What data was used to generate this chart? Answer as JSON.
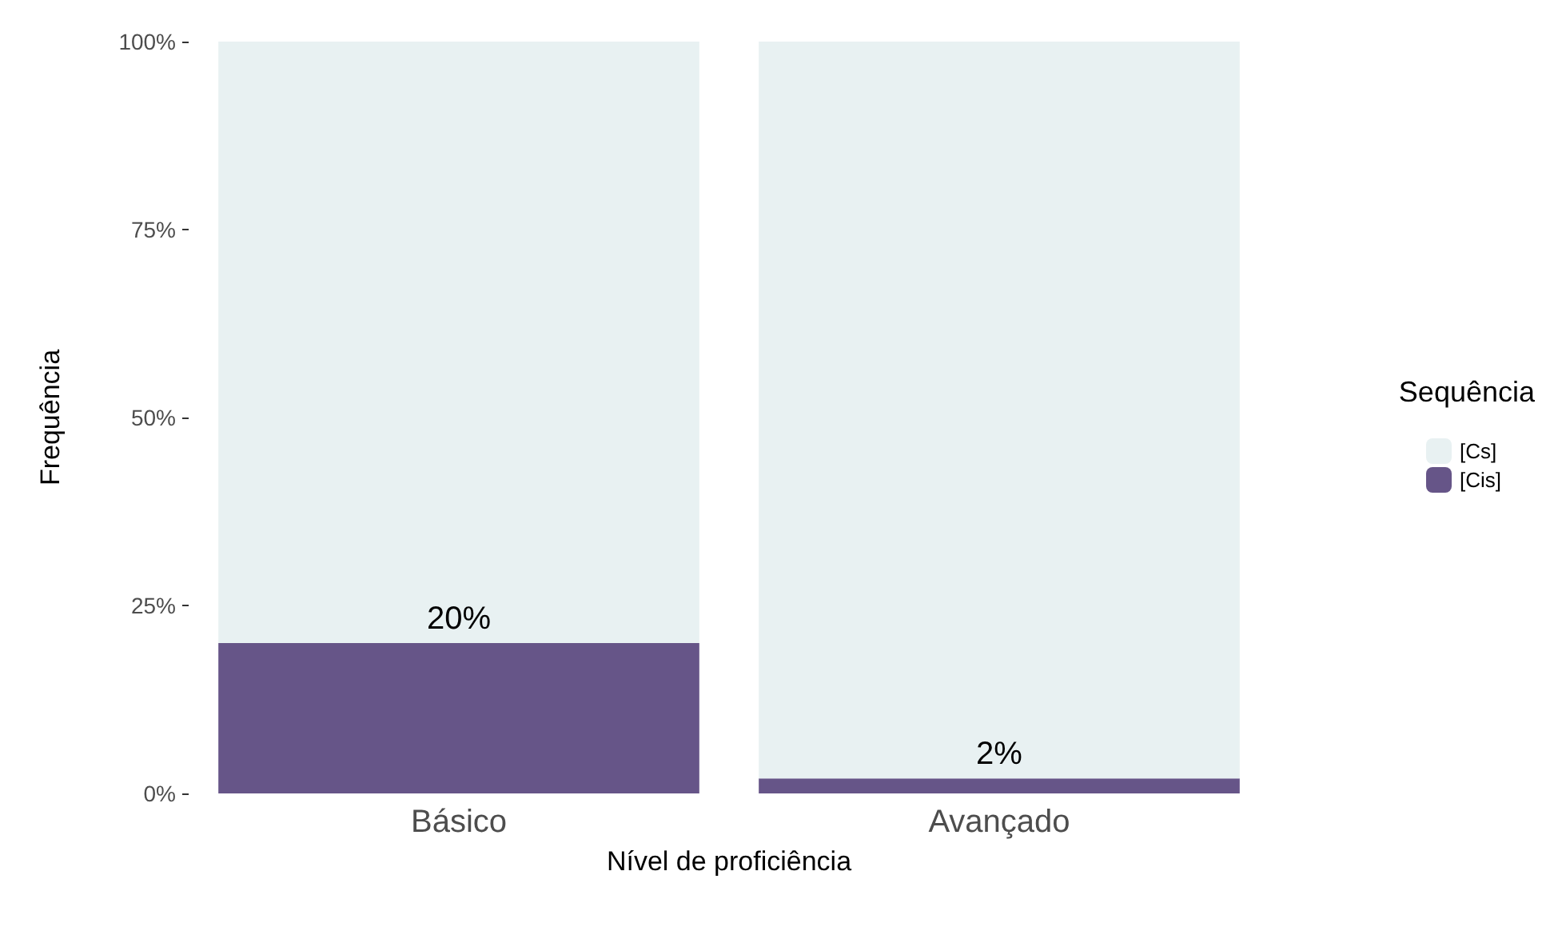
{
  "chart_data": {
    "type": "bar",
    "stacked": true,
    "xlabel": "Nível de proficiência",
    "ylabel": "Frequência",
    "legend_title": "Sequência",
    "legend": "right",
    "grid": false,
    "categories": [
      "Básico",
      "Avançado"
    ],
    "series": [
      {
        "name": "[Cis]",
        "color": "#665588",
        "values": [
          20,
          2
        ],
        "value_labels": [
          "20%",
          "2%"
        ]
      },
      {
        "name": "[Cs]",
        "color": "#e8f1f2",
        "values": [
          80,
          98
        ]
      }
    ],
    "ylim": [
      0,
      100
    ],
    "yticks": [
      {
        "value": 0,
        "label": "0%"
      },
      {
        "value": 25,
        "label": "25%"
      },
      {
        "value": 50,
        "label": "50%"
      },
      {
        "value": 75,
        "label": "75%"
      },
      {
        "value": 100,
        "label": "100%"
      }
    ]
  }
}
